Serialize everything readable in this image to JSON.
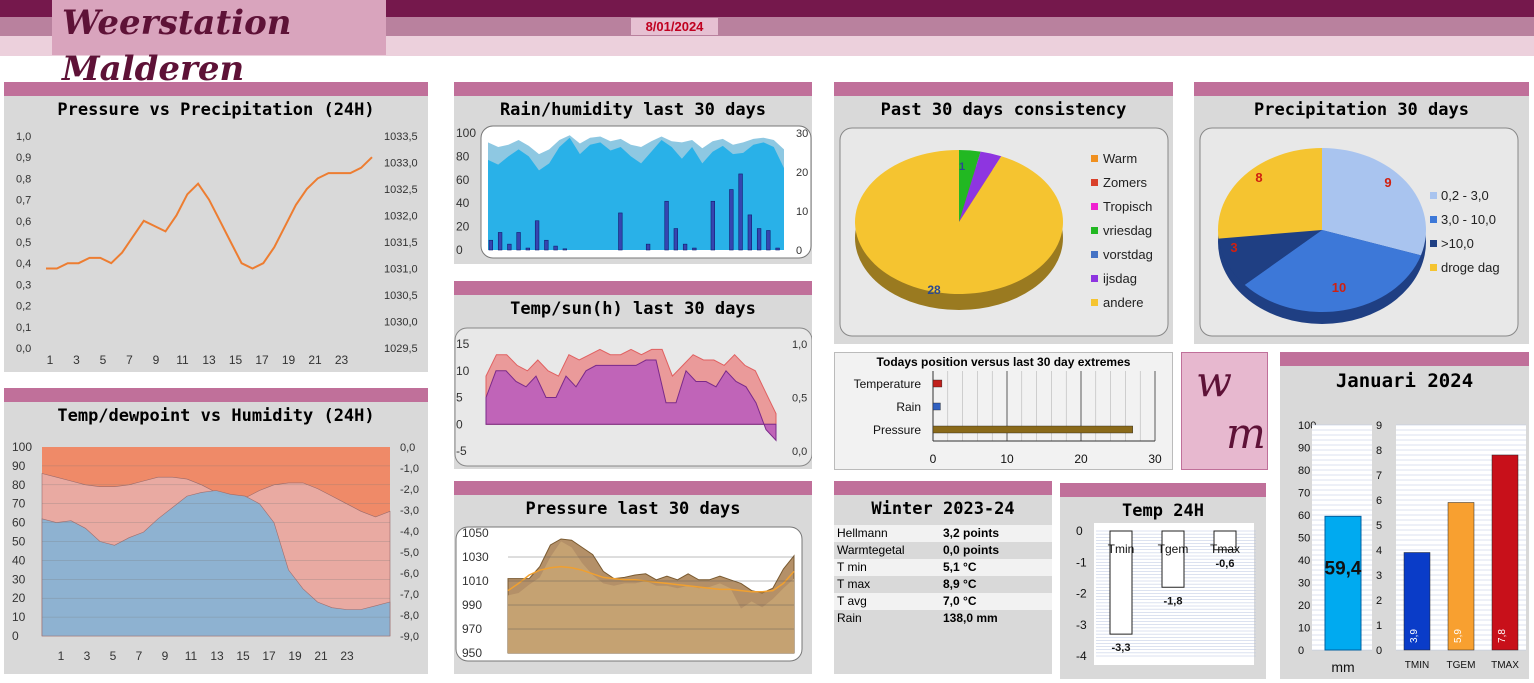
{
  "header": {
    "title": "Weerstation Malderen",
    "date": "8/01/2024",
    "logo_letters": [
      "w",
      "m"
    ],
    "accent": "#75184c"
  },
  "panels": {
    "pressure_precip": {
      "title": "Pressure vs Precipitation (24H)"
    },
    "temp_dew": {
      "title": "Temp/dewpoint vs Humidity (24H)"
    },
    "rain_hum": {
      "title": "Rain/humidity last 30 days"
    },
    "temp_sun": {
      "title": "Temp/sun(h) last 30 days"
    },
    "pressure30": {
      "title": "Pressure last 30 days"
    },
    "consistency": {
      "title": "Past 30 days consistency"
    },
    "precip30": {
      "title": "Precipitation 30 days"
    },
    "position": {
      "title": "Todays position versus last 30 day extremes"
    },
    "winter": {
      "title": "Winter 2023-24",
      "rows": [
        {
          "label": "Hellmann",
          "value": "3,2 points"
        },
        {
          "label": "Warmtegetal",
          "value": "0,0 points"
        },
        {
          "label": "T min",
          "value": "5,1 °C"
        },
        {
          "label": "T max",
          "value": "8,9 °C"
        },
        {
          "label": "T avg",
          "value": "7,0 °C"
        },
        {
          "label": "Rain",
          "value": "138,0 mm"
        }
      ]
    },
    "temp24": {
      "title": "Temp 24H"
    },
    "januari": {
      "title": "Januari 2024"
    }
  },
  "chart_data": [
    {
      "id": "pressure_precip",
      "type": "line",
      "x_ticks": [
        "1",
        "3",
        "5",
        "7",
        "9",
        "11",
        "13",
        "15",
        "17",
        "19",
        "21",
        "23"
      ],
      "y_left_ticks": [
        "1,0",
        "0,9",
        "0,8",
        "0,7",
        "0,6",
        "0,5",
        "0,4",
        "0,3",
        "0,2",
        "0,1",
        "0,0"
      ],
      "y_right_ticks": [
        "1033,5",
        "1033,0",
        "1032,5",
        "1032,0",
        "1031,5",
        "1031,0",
        "1030,5",
        "1030,0",
        "1029,5"
      ],
      "ylim_right": [
        1029.5,
        1033.5
      ],
      "series": [
        {
          "color": "#ed7d31",
          "values": [
            1031.0,
            1031.0,
            1031.1,
            1031.1,
            1031.2,
            1031.2,
            1031.1,
            1031.3,
            1031.6,
            1031.9,
            1031.8,
            1031.7,
            1032.0,
            1032.4,
            1032.6,
            1032.3,
            1031.9,
            1031.5,
            1031.1,
            1031.0,
            1031.1,
            1031.4,
            1031.8,
            1032.2,
            1032.5,
            1032.7,
            1032.8,
            1032.8,
            1032.8,
            1032.9,
            1033.1
          ]
        }
      ]
    },
    {
      "id": "temp_dew",
      "type": "area",
      "x_ticks": [
        "1",
        "3",
        "5",
        "7",
        "9",
        "11",
        "13",
        "15",
        "17",
        "19",
        "21",
        "23"
      ],
      "y_left_ticks": [
        "100",
        "90",
        "80",
        "70",
        "60",
        "50",
        "40",
        "30",
        "20",
        "10",
        "0"
      ],
      "y_right_ticks": [
        "0,0",
        "-1,0",
        "-2,0",
        "-3,0",
        "-4,0",
        "-5,0",
        "-6,0",
        "-7,0",
        "-8,0",
        "-9,0"
      ],
      "ylim_left": [
        0,
        100
      ],
      "series": [
        {
          "name": "humidity",
          "color": "#ef8a68",
          "values": [
            100,
            100,
            100,
            100,
            100,
            100,
            100,
            100,
            100,
            100,
            100,
            100,
            100,
            100,
            100,
            100,
            100,
            100,
            100,
            100,
            100,
            100,
            100,
            100,
            100
          ]
        },
        {
          "name": "temp",
          "color": "#e9aaa2",
          "values": [
            86,
            84,
            82,
            80,
            79,
            79,
            80,
            82,
            84,
            84,
            83,
            80,
            76,
            73,
            73,
            77,
            80,
            81,
            81,
            78,
            74,
            70,
            66,
            63,
            66
          ]
        },
        {
          "name": "dewpoint",
          "color": "#8ab3d4",
          "values": [
            62,
            60,
            61,
            57,
            50,
            48,
            52,
            55,
            62,
            68,
            74,
            76,
            77,
            75,
            74,
            70,
            60,
            35,
            25,
            18,
            15,
            14,
            14,
            16,
            18
          ]
        }
      ]
    },
    {
      "id": "rain_hum",
      "type": "bar",
      "y_left_ticks": [
        "100",
        "80",
        "60",
        "40",
        "20",
        "0"
      ],
      "y_right_ticks": [
        "30",
        "20",
        "10",
        "0"
      ],
      "ylim_left": [
        0,
        100
      ],
      "ylim_right": [
        0,
        30
      ],
      "humidity_top": [
        92,
        88,
        90,
        94,
        89,
        82,
        86,
        94,
        98,
        91,
        96,
        97,
        93,
        95,
        90,
        88,
        93,
        97,
        93,
        92,
        94,
        87,
        93,
        95,
        90,
        92,
        95,
        96,
        94,
        86
      ],
      "humidity_mid": [
        77,
        73,
        80,
        86,
        80,
        68,
        74,
        88,
        96,
        82,
        90,
        92,
        85,
        88,
        80,
        74,
        84,
        94,
        88,
        78,
        88,
        74,
        84,
        89,
        82,
        83,
        90,
        92,
        88,
        70
      ],
      "rain": [
        2.5,
        4.5,
        1.5,
        4.5,
        0.5,
        7.5,
        2.5,
        1.0,
        0.3,
        0,
        0,
        0,
        0,
        0,
        9.5,
        0,
        0,
        1.5,
        0,
        12.5,
        5.5,
        1.5,
        0.5,
        0,
        12.5,
        0,
        15.5,
        19.5,
        9.0,
        5.5,
        5.0,
        0.5
      ]
    },
    {
      "id": "temp_sun",
      "type": "area",
      "y_left_ticks": [
        "15",
        "10",
        "5",
        "0",
        "-5"
      ],
      "y_right_ticks": [
        "1,0",
        "0,5",
        "0,0"
      ],
      "ylim_left": [
        -5,
        15
      ],
      "series": [
        {
          "name": "tmax",
          "color": "#e67b7b",
          "values": [
            9,
            13,
            13,
            11,
            10,
            12,
            10,
            9,
            13,
            12,
            13,
            14,
            13,
            13,
            14,
            13,
            14,
            14,
            9,
            11,
            13,
            12,
            12,
            11,
            13,
            11,
            10,
            6,
            2
          ]
        },
        {
          "name": "tmin",
          "color": "#c064b0",
          "values": [
            5,
            10,
            10,
            8,
            7,
            9,
            5,
            5,
            9,
            7,
            10,
            11,
            11,
            11,
            11,
            11,
            12,
            12,
            4,
            4,
            10,
            8,
            8,
            7,
            10,
            8,
            7,
            4,
            -1,
            -3
          ]
        }
      ]
    },
    {
      "id": "pressure30",
      "type": "area",
      "y_ticks": [
        "1050",
        "1030",
        "1010",
        "990",
        "970",
        "950"
      ],
      "ylim": [
        950,
        1050
      ],
      "series": [
        {
          "name": "max",
          "color": "#b49068",
          "values": [
            1012,
            1012,
            1012,
            1022,
            1040,
            1045,
            1044,
            1038,
            1032,
            1018,
            1012,
            1013,
            1015,
            1016,
            1011,
            1014,
            1011,
            1016,
            1011,
            1011,
            1014,
            1011,
            1008,
            1002,
            1000,
            1004,
            1020,
            1031
          ]
        },
        {
          "name": "min",
          "color": "#c5a272",
          "values": [
            998,
            1000,
            1007,
            1013,
            1030,
            1043,
            1038,
            1025,
            1015,
            1008,
            1006,
            1008,
            1008,
            1010,
            1006,
            1006,
            1004,
            1006,
            1004,
            1005,
            1008,
            1004,
            987,
            993,
            988,
            995,
            1004,
            1012
          ]
        },
        {
          "name": "avg",
          "color": "#f0a030",
          "values": [
            1002,
            1008,
            1015,
            1019,
            1021,
            1022,
            1021,
            1019,
            1016,
            1013,
            1012,
            1011,
            1011,
            1010,
            1009,
            1008,
            1007,
            1006,
            1005,
            1004,
            1003,
            1003,
            1002,
            1001,
            1001,
            1002,
            1008,
            1018
          ]
        }
      ]
    },
    {
      "id": "consistency",
      "type": "pie",
      "legend": [
        {
          "name": "Warm",
          "color": "#f0901f"
        },
        {
          "name": "Zomers",
          "color": "#d9402a"
        },
        {
          "name": "Tropisch",
          "color": "#f020d0"
        },
        {
          "name": "vriesdag",
          "color": "#22b822"
        },
        {
          "name": "vorstdag",
          "color": "#4472c4"
        },
        {
          "name": "ijsdag",
          "color": "#8e35e0"
        },
        {
          "name": "andere",
          "color": "#f5c430"
        }
      ],
      "slices": [
        {
          "name": "vriesdag",
          "value": 1
        },
        {
          "name": "ijsdag",
          "value": 1
        },
        {
          "name": "andere",
          "value": 28
        }
      ],
      "labels": [
        "1",
        "28"
      ]
    },
    {
      "id": "precip30",
      "type": "pie",
      "legend": [
        {
          "name": "0,2 - 3,0",
          "color": "#a9c4ef"
        },
        {
          "name": "3,0 - 10,0",
          "color": "#3d78d8"
        },
        {
          "name": ">10,0",
          "color": "#1f3f83"
        },
        {
          "name": "droge dag",
          "color": "#f5c430"
        }
      ],
      "slices": [
        {
          "name": "0,2 - 3,0",
          "value": 9
        },
        {
          "name": "3,0 - 10,0",
          "value": 10
        },
        {
          "name": ">10,0",
          "value": 3
        },
        {
          "name": "droge dag",
          "value": 8
        }
      ]
    },
    {
      "id": "position",
      "type": "bar",
      "categories": [
        "Temperature",
        "Rain",
        "Pressure"
      ],
      "values": [
        1.2,
        1.0,
        27.0
      ],
      "colors": [
        "#c0201c",
        "#3060c0",
        "#8a6a1a"
      ],
      "xlim": [
        0,
        30
      ],
      "x_ticks": [
        "0",
        "10",
        "20",
        "30"
      ]
    },
    {
      "id": "temp24",
      "type": "bar",
      "categories": [
        "Tmin",
        "Tgem",
        "Tmax"
      ],
      "values": [
        -3.3,
        -1.8,
        -0.6
      ],
      "labels": [
        "-3,3",
        "-1,8",
        "-0,6"
      ],
      "ylim": [
        -4,
        0
      ],
      "y_ticks": [
        "0",
        "-1",
        "-2",
        "-3",
        "-4"
      ]
    },
    {
      "id": "januari",
      "type": "bar",
      "rain": {
        "value": 59.4,
        "label": "59,4",
        "unit": "mm"
      },
      "y_left_ticks": [
        "100",
        "90",
        "80",
        "70",
        "60",
        "50",
        "40",
        "30",
        "20",
        "10",
        "0"
      ],
      "y_right_ticks": [
        "9",
        "8",
        "7",
        "6",
        "5",
        "4",
        "3",
        "2",
        "1",
        "0"
      ],
      "ylim_left": [
        0,
        100
      ],
      "ylim_right": [
        0,
        9
      ],
      "categories": [
        "TMIN",
        "TGEM",
        "TMAX"
      ],
      "values": [
        3.9,
        5.9,
        7.8
      ],
      "labels": [
        "3,9",
        "5,9",
        "7,8"
      ],
      "colors": [
        "#0a3cc8",
        "#f8a030",
        "#c8101a"
      ]
    }
  ]
}
